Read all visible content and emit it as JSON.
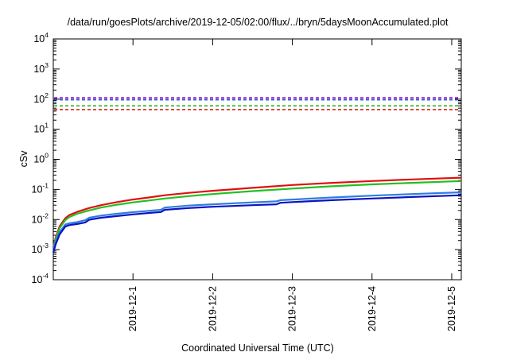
{
  "chart_data": {
    "type": "line",
    "title": "/data/run/goesPlots/archive/2019-12-05/02:00/flux/../bryn/5daysMoonAccumulated.plot",
    "xlabel": "Coordinated Universal Time (UTC)",
    "ylabel": "cSv",
    "yscale": "log",
    "ylim": [
      0.0001,
      10000
    ],
    "xlim": [
      0,
      5.12
    ],
    "y_ticks": [
      {
        "base": "10",
        "exp": "-4",
        "value": 0.0001
      },
      {
        "base": "10",
        "exp": "-3",
        "value": 0.001
      },
      {
        "base": "10",
        "exp": "-2",
        "value": 0.01
      },
      {
        "base": "10",
        "exp": "-1",
        "value": 0.1
      },
      {
        "base": "10",
        "exp": "0",
        "value": 1
      },
      {
        "base": "10",
        "exp": "1",
        "value": 10
      },
      {
        "base": "10",
        "exp": "2",
        "value": 100
      },
      {
        "base": "10",
        "exp": "3",
        "value": 1000
      },
      {
        "base": "10",
        "exp": "4",
        "value": 10000
      }
    ],
    "x_ticks": [
      {
        "label": "2019-12-1",
        "x": 1
      },
      {
        "label": "2019-12-2",
        "x": 2
      },
      {
        "label": "2019-12-3",
        "x": 3
      },
      {
        "label": "2019-12-4",
        "x": 4
      },
      {
        "label": "2019-12-5",
        "x": 5
      }
    ],
    "grid": false,
    "legend": "none",
    "thresholds": [
      {
        "color": "#8000c0",
        "value": 110
      },
      {
        "color": "#1f3fd0",
        "value": 95
      },
      {
        "color": "#22c022",
        "value": 60
      },
      {
        "color": "#e01010",
        "value": 45
      }
    ],
    "series": [
      {
        "color": "#e01010",
        "x": [
          0,
          0.03,
          0.08,
          0.15,
          0.2,
          0.3,
          0.45,
          0.6,
          0.8,
          1.0,
          1.2,
          1.4,
          1.7,
          2.0,
          2.5,
          3.0,
          3.5,
          4.0,
          4.5,
          5.12
        ],
        "y": [
          0.0012,
          0.0025,
          0.006,
          0.011,
          0.014,
          0.018,
          0.024,
          0.03,
          0.038,
          0.046,
          0.054,
          0.064,
          0.077,
          0.09,
          0.113,
          0.14,
          0.165,
          0.19,
          0.215,
          0.245
        ]
      },
      {
        "color": "#22c022",
        "x": [
          0,
          0.03,
          0.08,
          0.15,
          0.2,
          0.3,
          0.45,
          0.6,
          0.8,
          1.0,
          1.2,
          1.4,
          1.7,
          2.0,
          2.5,
          3.0,
          3.5,
          4.0,
          4.5,
          5.12
        ],
        "y": [
          0.0011,
          0.0022,
          0.0052,
          0.0095,
          0.012,
          0.0155,
          0.02,
          0.025,
          0.031,
          0.037,
          0.043,
          0.05,
          0.06,
          0.07,
          0.088,
          0.107,
          0.127,
          0.147,
          0.165,
          0.19
        ]
      },
      {
        "color": "#2f7de0",
        "x": [
          0,
          0.03,
          0.08,
          0.15,
          0.2,
          0.3,
          0.4,
          0.45,
          0.6,
          0.8,
          1.0,
          1.2,
          1.35,
          1.4,
          1.7,
          2.0,
          2.5,
          2.8,
          2.85,
          3.0,
          3.5,
          4.0,
          4.5,
          5.12
        ],
        "y": [
          0.0011,
          0.0018,
          0.0038,
          0.0068,
          0.0075,
          0.0082,
          0.0095,
          0.0115,
          0.0135,
          0.0155,
          0.0175,
          0.0195,
          0.021,
          0.025,
          0.029,
          0.032,
          0.037,
          0.04,
          0.044,
          0.046,
          0.054,
          0.062,
          0.07,
          0.08
        ]
      },
      {
        "color": "#0a14c0",
        "x": [
          0,
          0.03,
          0.08,
          0.15,
          0.2,
          0.3,
          0.4,
          0.45,
          0.6,
          0.8,
          1.0,
          1.2,
          1.35,
          1.4,
          1.7,
          2.0,
          2.5,
          2.8,
          2.85,
          3.0,
          3.5,
          4.0,
          4.5,
          5.12
        ],
        "y": [
          0.0008,
          0.0015,
          0.0032,
          0.0058,
          0.0065,
          0.0071,
          0.008,
          0.0098,
          0.0115,
          0.013,
          0.0148,
          0.0165,
          0.0178,
          0.021,
          0.024,
          0.0265,
          0.03,
          0.032,
          0.036,
          0.038,
          0.044,
          0.05,
          0.056,
          0.064
        ]
      }
    ]
  }
}
